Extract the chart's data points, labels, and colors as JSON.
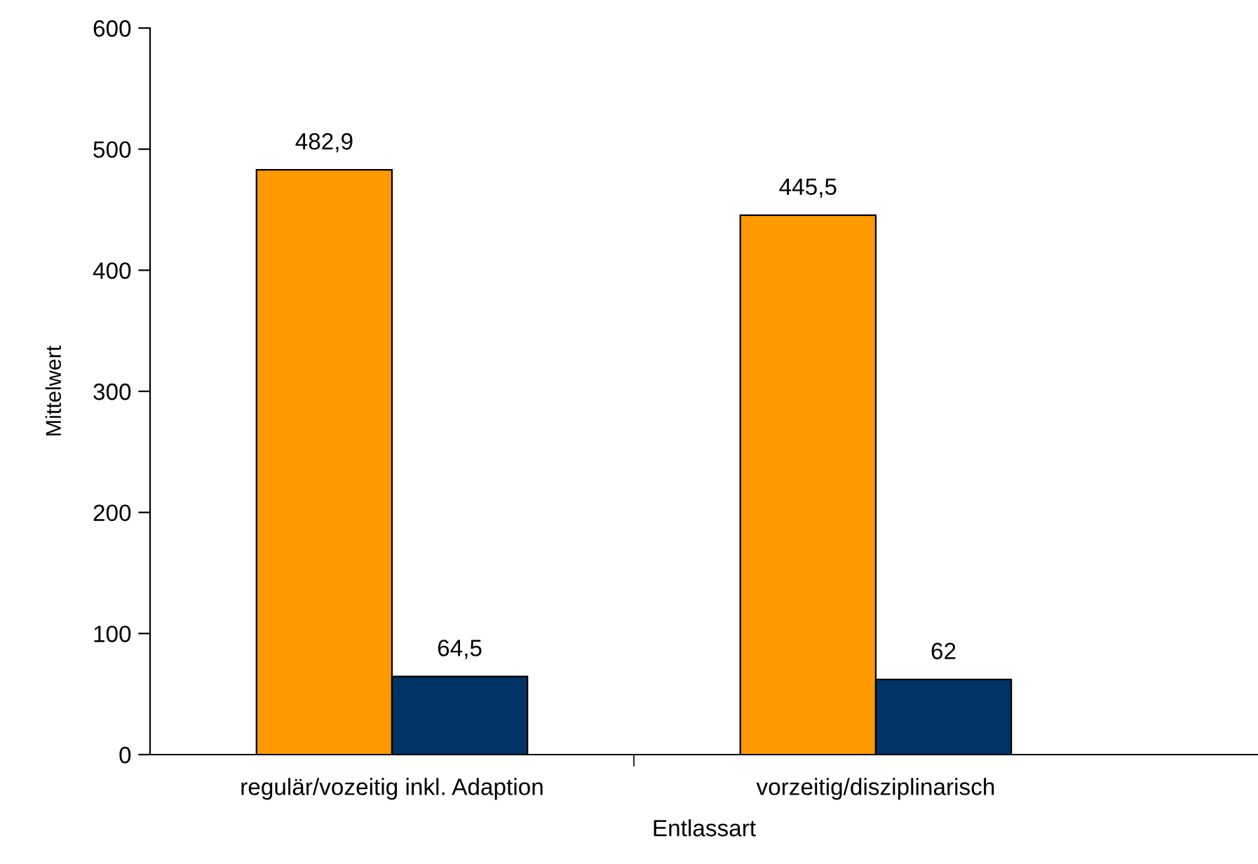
{
  "chart_data": {
    "type": "bar",
    "xlabel": "Entlassart",
    "ylabel": "Mittelwert",
    "categories": [
      "regulär/vozeitig inkl. Adaption",
      "vorzeitig/disziplinarisch"
    ],
    "series": [
      {
        "color": "#ff9900",
        "values": [
          482.9,
          445.5
        ],
        "value_labels": [
          "482,9",
          "445,5"
        ]
      },
      {
        "color": "#003366",
        "values": [
          64.5,
          62
        ],
        "value_labels": [
          "64,5",
          "62"
        ]
      }
    ],
    "ylim": [
      0,
      600
    ],
    "yticks": [
      0,
      100,
      200,
      300,
      400,
      500,
      600
    ],
    "grid": false,
    "legend": false
  }
}
